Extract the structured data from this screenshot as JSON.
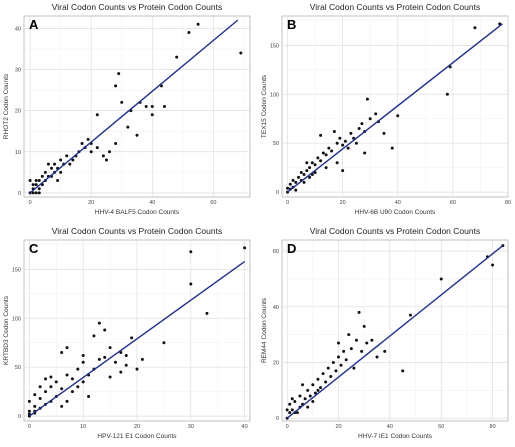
{
  "chart_data": [
    {
      "type": "scatter",
      "letter": "A",
      "title": "Viral Codon Counts vs Protein Codon Counts",
      "xlabel": "HHV-4 BALF5 Codon Counts",
      "ylabel": "RHOT2 Codon Counts",
      "xlim": [
        -2,
        72
      ],
      "ylim": [
        -1,
        43
      ],
      "xticks": [
        0,
        20,
        40,
        60
      ],
      "yticks": [
        0,
        10,
        20,
        30,
        40
      ],
      "grid": true,
      "fit_line": {
        "x": [
          0,
          68
        ],
        "y": [
          0,
          42
        ],
        "color": "#1f2f8f"
      },
      "points": [
        [
          0,
          0
        ],
        [
          1,
          1
        ],
        [
          2,
          0
        ],
        [
          2,
          2
        ],
        [
          3,
          1
        ],
        [
          3,
          3
        ],
        [
          4,
          2
        ],
        [
          5,
          3
        ],
        [
          5,
          5
        ],
        [
          6,
          4
        ],
        [
          7,
          4
        ],
        [
          7,
          6
        ],
        [
          8,
          5
        ],
        [
          8,
          7
        ],
        [
          9,
          3
        ],
        [
          9,
          6
        ],
        [
          10,
          5
        ],
        [
          10,
          8
        ],
        [
          11,
          7
        ],
        [
          12,
          9
        ],
        [
          13,
          7
        ],
        [
          14,
          8
        ],
        [
          15,
          9
        ],
        [
          16,
          10
        ],
        [
          17,
          12
        ],
        [
          18,
          11
        ],
        [
          19,
          13
        ],
        [
          20,
          10
        ],
        [
          20,
          12
        ],
        [
          22,
          11
        ],
        [
          22,
          19
        ],
        [
          24,
          9
        ],
        [
          25,
          8
        ],
        [
          26,
          10
        ],
        [
          28,
          12
        ],
        [
          28,
          26
        ],
        [
          29,
          29
        ],
        [
          30,
          22
        ],
        [
          32,
          16
        ],
        [
          33,
          20
        ],
        [
          35,
          14
        ],
        [
          36,
          22
        ],
        [
          38,
          21
        ],
        [
          40,
          21
        ],
        [
          40,
          19
        ],
        [
          43,
          26
        ],
        [
          44,
          21
        ],
        [
          48,
          33
        ],
        [
          52,
          39
        ],
        [
          55,
          41
        ],
        [
          69,
          34
        ],
        [
          0,
          3
        ],
        [
          1,
          2
        ],
        [
          2,
          3
        ],
        [
          4,
          4
        ],
        [
          6,
          7
        ],
        [
          3,
          0
        ],
        [
          1,
          0
        ]
      ]
    },
    {
      "type": "scatter",
      "letter": "B",
      "title": "Viral Codon Counts vs Protein Codon Counts",
      "xlabel": "HHV-6B U90 Codon Counts",
      "ylabel": "TEX15 Codon Counts",
      "xlim": [
        -2,
        80
      ],
      "ylim": [
        -5,
        180
      ],
      "xticks": [
        0,
        20,
        40,
        60,
        80
      ],
      "yticks": [
        0,
        50,
        100,
        150
      ],
      "grid": true,
      "fit_line": {
        "x": [
          0,
          78
        ],
        "y": [
          0,
          172
        ],
        "color": "#1f2f8f"
      },
      "points": [
        [
          0,
          0
        ],
        [
          1,
          3
        ],
        [
          1,
          8
        ],
        [
          2,
          5
        ],
        [
          3,
          10
        ],
        [
          4,
          15
        ],
        [
          5,
          12
        ],
        [
          5,
          20
        ],
        [
          6,
          18
        ],
        [
          7,
          22
        ],
        [
          8,
          25
        ],
        [
          8,
          15
        ],
        [
          9,
          30
        ],
        [
          10,
          28
        ],
        [
          10,
          20
        ],
        [
          11,
          35
        ],
        [
          12,
          32
        ],
        [
          12,
          58
        ],
        [
          13,
          40
        ],
        [
          14,
          38
        ],
        [
          14,
          25
        ],
        [
          15,
          45
        ],
        [
          16,
          42
        ],
        [
          17,
          62
        ],
        [
          18,
          50
        ],
        [
          18,
          30
        ],
        [
          19,
          55
        ],
        [
          20,
          48
        ],
        [
          20,
          22
        ],
        [
          21,
          52
        ],
        [
          22,
          45
        ],
        [
          23,
          60
        ],
        [
          24,
          55
        ],
        [
          25,
          50
        ],
        [
          26,
          65
        ],
        [
          27,
          70
        ],
        [
          28,
          62
        ],
        [
          28,
          40
        ],
        [
          29,
          95
        ],
        [
          30,
          75
        ],
        [
          32,
          80
        ],
        [
          33,
          72
        ],
        [
          35,
          60
        ],
        [
          38,
          45
        ],
        [
          40,
          78
        ],
        [
          58,
          100
        ],
        [
          59,
          128
        ],
        [
          68,
          168
        ],
        [
          77,
          172
        ],
        [
          0,
          4
        ],
        [
          2,
          12
        ],
        [
          3,
          2
        ],
        [
          6,
          10
        ],
        [
          7,
          30
        ],
        [
          9,
          18
        ]
      ]
    },
    {
      "type": "scatter",
      "letter": "C",
      "title": "Viral Codon Counts vs Protein Codon Counts",
      "xlabel": "HPV-121 E1 Codon Counts",
      "ylabel": "KRTBD3 Codon Counts",
      "xlim": [
        -1,
        41
      ],
      "ylim": [
        -5,
        180
      ],
      "xticks": [
        0,
        10,
        20,
        30,
        40
      ],
      "yticks": [
        0,
        50,
        100,
        150
      ],
      "grid": true,
      "fit_line": {
        "x": [
          0,
          40
        ],
        "y": [
          0,
          158
        ],
        "color": "#1f2f8f"
      },
      "points": [
        [
          0,
          0
        ],
        [
          0,
          5
        ],
        [
          0,
          15
        ],
        [
          1,
          3
        ],
        [
          1,
          10
        ],
        [
          1,
          22
        ],
        [
          2,
          8
        ],
        [
          2,
          18
        ],
        [
          3,
          12
        ],
        [
          3,
          25
        ],
        [
          3,
          38
        ],
        [
          4,
          15
        ],
        [
          4,
          30
        ],
        [
          5,
          20
        ],
        [
          5,
          35
        ],
        [
          6,
          10
        ],
        [
          6,
          28
        ],
        [
          7,
          15
        ],
        [
          7,
          42
        ],
        [
          7,
          70
        ],
        [
          8,
          25
        ],
        [
          8,
          38
        ],
        [
          9,
          30
        ],
        [
          9,
          48
        ],
        [
          10,
          35
        ],
        [
          10,
          55
        ],
        [
          10,
          62
        ],
        [
          11,
          20
        ],
        [
          11,
          42
        ],
        [
          12,
          48
        ],
        [
          12,
          82
        ],
        [
          13,
          58
        ],
        [
          13,
          95
        ],
        [
          14,
          60
        ],
        [
          14,
          88
        ],
        [
          15,
          40
        ],
        [
          15,
          70
        ],
        [
          16,
          55
        ],
        [
          17,
          65
        ],
        [
          17,
          45
        ],
        [
          18,
          62
        ],
        [
          18,
          52
        ],
        [
          19,
          80
        ],
        [
          20,
          48
        ],
        [
          21,
          58
        ],
        [
          25,
          75
        ],
        [
          30,
          135
        ],
        [
          30,
          168
        ],
        [
          33,
          105
        ],
        [
          40,
          172
        ],
        [
          0,
          2
        ],
        [
          1,
          5
        ],
        [
          2,
          30
        ],
        [
          4,
          40
        ],
        [
          6,
          65
        ]
      ]
    },
    {
      "type": "scatter",
      "letter": "D",
      "title": "Viral Codon Counts vs Protein Codon Counts",
      "xlabel": "HHV-7 IE1 Codon Counts",
      "ylabel": "REM44 Codon Counts",
      "xlim": [
        -2,
        86
      ],
      "ylim": [
        -1,
        64
      ],
      "xticks": [
        0,
        20,
        40,
        60,
        80
      ],
      "yticks": [
        0,
        20,
        40,
        60
      ],
      "grid": true,
      "fit_line": {
        "x": [
          0,
          84
        ],
        "y": [
          0,
          62
        ],
        "color": "#1f2f8f"
      },
      "points": [
        [
          0,
          0
        ],
        [
          1,
          2
        ],
        [
          1,
          5
        ],
        [
          2,
          3
        ],
        [
          3,
          6
        ],
        [
          4,
          2
        ],
        [
          5,
          4
        ],
        [
          5,
          8
        ],
        [
          6,
          5
        ],
        [
          7,
          7
        ],
        [
          8,
          10
        ],
        [
          8,
          4
        ],
        [
          9,
          8
        ],
        [
          10,
          12
        ],
        [
          10,
          6
        ],
        [
          11,
          9
        ],
        [
          12,
          14
        ],
        [
          12,
          10
        ],
        [
          13,
          11
        ],
        [
          14,
          16
        ],
        [
          15,
          13
        ],
        [
          16,
          18
        ],
        [
          17,
          15
        ],
        [
          18,
          20
        ],
        [
          19,
          17
        ],
        [
          20,
          22
        ],
        [
          20,
          27
        ],
        [
          21,
          19
        ],
        [
          22,
          24
        ],
        [
          23,
          21
        ],
        [
          24,
          30
        ],
        [
          25,
          25
        ],
        [
          26,
          18
        ],
        [
          27,
          28
        ],
        [
          28,
          38
        ],
        [
          29,
          24
        ],
        [
          30,
          33
        ],
        [
          31,
          27
        ],
        [
          33,
          28
        ],
        [
          35,
          22
        ],
        [
          38,
          24
        ],
        [
          45,
          17
        ],
        [
          48,
          37
        ],
        [
          60,
          50
        ],
        [
          78,
          58
        ],
        [
          80,
          55
        ],
        [
          84,
          62
        ],
        [
          0,
          3
        ],
        [
          2,
          7
        ],
        [
          3,
          2
        ],
        [
          6,
          12
        ]
      ]
    }
  ]
}
